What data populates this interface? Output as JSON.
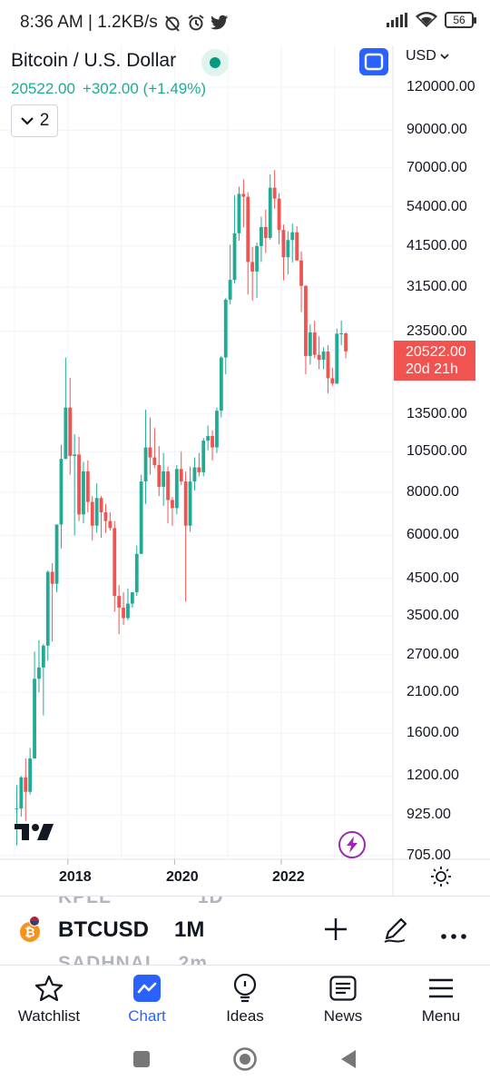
{
  "status_bar": {
    "time_speed": "8:36 AM | 1.2KB/s",
    "battery": "56"
  },
  "header": {
    "title": "Bitcoin / U.S. Dollar",
    "price": "20522.00",
    "change": "+302.00 (+1.49%)",
    "collapse_count": "2",
    "currency": "USD"
  },
  "price_axis": [
    "120000.00",
    "90000.00",
    "70000.00",
    "54000.00",
    "41500.00",
    "31500.00",
    "23500.00",
    "13500.00",
    "10500.00",
    "8000.00",
    "6000.00",
    "4500.00",
    "3500.00",
    "2700.00",
    "2100.00",
    "1600.00",
    "1200.00",
    "925.00",
    "705.00"
  ],
  "price_tag": {
    "price": "20522.00",
    "countdown": "20d 21h"
  },
  "time_axis": [
    "2018",
    "2020",
    "2022"
  ],
  "toolbar": {
    "ghost_above": "KPLL",
    "ghost_above_interval": "1D",
    "ticker": "BTCUSD",
    "interval": "1M",
    "ghost_below": "SADHNAI",
    "ghost_below_interval": "2m"
  },
  "nav": [
    {
      "label": "Watchlist",
      "icon": "star-icon"
    },
    {
      "label": "Chart",
      "icon": "chart-icon"
    },
    {
      "label": "Ideas",
      "icon": "lightbulb-icon"
    },
    {
      "label": "News",
      "icon": "news-icon"
    },
    {
      "label": "Menu",
      "icon": "menu-icon"
    }
  ],
  "colors": {
    "up": "#22ab94",
    "down": "#f05350",
    "accent": "#2962ff"
  },
  "chart_data": {
    "type": "candlestick",
    "scale": "log",
    "series": [
      {
        "t": "2017-01",
        "o": 965,
        "h": 1130,
        "l": 755,
        "c": 966
      },
      {
        "t": "2017-02",
        "o": 966,
        "h": 1200,
        "l": 915,
        "c": 1190
      },
      {
        "t": "2017-03",
        "o": 1190,
        "h": 1350,
        "l": 890,
        "c": 1080
      },
      {
        "t": "2017-04",
        "o": 1080,
        "h": 1450,
        "l": 1060,
        "c": 1350
      },
      {
        "t": "2017-05",
        "o": 1350,
        "h": 2760,
        "l": 1350,
        "c": 2300
      },
      {
        "t": "2017-06",
        "o": 2300,
        "h": 2980,
        "l": 2100,
        "c": 2480
      },
      {
        "t": "2017-07",
        "o": 2480,
        "h": 2900,
        "l": 1800,
        "c": 2870
      },
      {
        "t": "2017-08",
        "o": 2870,
        "h": 4750,
        "l": 2600,
        "c": 4700
      },
      {
        "t": "2017-09",
        "o": 4700,
        "h": 4980,
        "l": 2950,
        "c": 4340
      },
      {
        "t": "2017-10",
        "o": 4340,
        "h": 6450,
        "l": 4100,
        "c": 6450
      },
      {
        "t": "2017-11",
        "o": 6450,
        "h": 11000,
        "l": 5500,
        "c": 10000
      },
      {
        "t": "2017-12",
        "o": 10000,
        "h": 19700,
        "l": 10000,
        "c": 14100
      },
      {
        "t": "2018-01",
        "o": 14100,
        "h": 17200,
        "l": 9000,
        "c": 10200
      },
      {
        "t": "2018-02",
        "o": 10200,
        "h": 11800,
        "l": 6000,
        "c": 10300
      },
      {
        "t": "2018-03",
        "o": 10300,
        "h": 11600,
        "l": 6600,
        "c": 6900
      },
      {
        "t": "2018-04",
        "o": 6900,
        "h": 9800,
        "l": 6500,
        "c": 9200
      },
      {
        "t": "2018-05",
        "o": 9200,
        "h": 9900,
        "l": 7000,
        "c": 7500
      },
      {
        "t": "2018-06",
        "o": 7500,
        "h": 7800,
        "l": 5800,
        "c": 6400
      },
      {
        "t": "2018-07",
        "o": 6400,
        "h": 8500,
        "l": 6100,
        "c": 7700
      },
      {
        "t": "2018-08",
        "o": 7700,
        "h": 7800,
        "l": 5900,
        "c": 7000
      },
      {
        "t": "2018-09",
        "o": 7000,
        "h": 7400,
        "l": 6100,
        "c": 6600
      },
      {
        "t": "2018-10",
        "o": 6600,
        "h": 7000,
        "l": 6200,
        "c": 6300
      },
      {
        "t": "2018-11",
        "o": 6300,
        "h": 6600,
        "l": 3600,
        "c": 4000
      },
      {
        "t": "2018-12",
        "o": 4000,
        "h": 4300,
        "l": 3100,
        "c": 3700
      },
      {
        "t": "2019-01",
        "o": 3700,
        "h": 4100,
        "l": 3300,
        "c": 3450
      },
      {
        "t": "2019-02",
        "o": 3450,
        "h": 4200,
        "l": 3400,
        "c": 3800
      },
      {
        "t": "2019-03",
        "o": 3800,
        "h": 4100,
        "l": 3700,
        "c": 4100
      },
      {
        "t": "2019-04",
        "o": 4100,
        "h": 5600,
        "l": 4000,
        "c": 5300
      },
      {
        "t": "2019-05",
        "o": 5300,
        "h": 9000,
        "l": 5300,
        "c": 8600
      },
      {
        "t": "2019-06",
        "o": 8600,
        "h": 13900,
        "l": 7400,
        "c": 10800
      },
      {
        "t": "2019-07",
        "o": 10800,
        "h": 13200,
        "l": 9000,
        "c": 10100
      },
      {
        "t": "2019-08",
        "o": 10100,
        "h": 12300,
        "l": 9400,
        "c": 9600
      },
      {
        "t": "2019-09",
        "o": 9600,
        "h": 10900,
        "l": 7800,
        "c": 8300
      },
      {
        "t": "2019-10",
        "o": 8300,
        "h": 10400,
        "l": 7300,
        "c": 9200
      },
      {
        "t": "2019-11",
        "o": 9200,
        "h": 9500,
        "l": 6500,
        "c": 7600
      },
      {
        "t": "2019-12",
        "o": 7600,
        "h": 7750,
        "l": 6400,
        "c": 7200
      },
      {
        "t": "2020-01",
        "o": 7200,
        "h": 9600,
        "l": 6900,
        "c": 9350
      },
      {
        "t": "2020-02",
        "o": 9350,
        "h": 10500,
        "l": 8400,
        "c": 8600
      },
      {
        "t": "2020-03",
        "o": 8600,
        "h": 9200,
        "l": 3850,
        "c": 6400
      },
      {
        "t": "2020-04",
        "o": 6400,
        "h": 9500,
        "l": 6150,
        "c": 8600
      },
      {
        "t": "2020-05",
        "o": 8600,
        "h": 10100,
        "l": 8100,
        "c": 9450
      },
      {
        "t": "2020-06",
        "o": 9450,
        "h": 10400,
        "l": 8900,
        "c": 9150
      },
      {
        "t": "2020-07",
        "o": 9150,
        "h": 11500,
        "l": 8900,
        "c": 11300
      },
      {
        "t": "2020-08",
        "o": 11300,
        "h": 12500,
        "l": 10600,
        "c": 11650
      },
      {
        "t": "2020-09",
        "o": 11650,
        "h": 12100,
        "l": 9900,
        "c": 10800
      },
      {
        "t": "2020-10",
        "o": 10800,
        "h": 14100,
        "l": 10400,
        "c": 13800
      },
      {
        "t": "2020-11",
        "o": 13800,
        "h": 19900,
        "l": 13200,
        "c": 19700
      },
      {
        "t": "2020-12",
        "o": 19700,
        "h": 29300,
        "l": 17600,
        "c": 29000
      },
      {
        "t": "2021-01",
        "o": 29000,
        "h": 41900,
        "l": 28100,
        "c": 33100
      },
      {
        "t": "2021-02",
        "o": 33100,
        "h": 58300,
        "l": 32300,
        "c": 45200
      },
      {
        "t": "2021-03",
        "o": 45200,
        "h": 61700,
        "l": 43000,
        "c": 58800
      },
      {
        "t": "2021-04",
        "o": 58800,
        "h": 64800,
        "l": 47000,
        "c": 57700
      },
      {
        "t": "2021-05",
        "o": 57700,
        "h": 59500,
        "l": 30000,
        "c": 37300
      },
      {
        "t": "2021-06",
        "o": 37300,
        "h": 41300,
        "l": 28800,
        "c": 35000
      },
      {
        "t": "2021-07",
        "o": 35000,
        "h": 42500,
        "l": 29300,
        "c": 41500
      },
      {
        "t": "2021-08",
        "o": 41500,
        "h": 50500,
        "l": 37300,
        "c": 47100
      },
      {
        "t": "2021-09",
        "o": 47100,
        "h": 52900,
        "l": 39600,
        "c": 43800
      },
      {
        "t": "2021-10",
        "o": 43800,
        "h": 67000,
        "l": 43300,
        "c": 61300
      },
      {
        "t": "2021-11",
        "o": 61300,
        "h": 69000,
        "l": 53300,
        "c": 57000
      },
      {
        "t": "2021-12",
        "o": 57000,
        "h": 59100,
        "l": 42000,
        "c": 46200
      },
      {
        "t": "2022-01",
        "o": 46200,
        "h": 47900,
        "l": 33000,
        "c": 38500
      },
      {
        "t": "2022-02",
        "o": 38500,
        "h": 45800,
        "l": 34300,
        "c": 43200
      },
      {
        "t": "2022-03",
        "o": 43200,
        "h": 48200,
        "l": 37200,
        "c": 45500
      },
      {
        "t": "2022-04",
        "o": 45500,
        "h": 47400,
        "l": 37600,
        "c": 37700
      },
      {
        "t": "2022-05",
        "o": 37700,
        "h": 40000,
        "l": 26700,
        "c": 31800
      },
      {
        "t": "2022-06",
        "o": 31800,
        "h": 31900,
        "l": 17600,
        "c": 19900
      },
      {
        "t": "2022-07",
        "o": 19900,
        "h": 24600,
        "l": 18800,
        "c": 23300
      },
      {
        "t": "2022-08",
        "o": 23300,
        "h": 25200,
        "l": 19600,
        "c": 20050
      },
      {
        "t": "2022-09",
        "o": 20050,
        "h": 22700,
        "l": 18200,
        "c": 19400
      },
      {
        "t": "2022-10",
        "o": 19400,
        "h": 21100,
        "l": 18200,
        "c": 20500
      },
      {
        "t": "2022-11",
        "o": 20500,
        "h": 21400,
        "l": 15500,
        "c": 17150
      },
      {
        "t": "2022-12",
        "o": 17150,
        "h": 18400,
        "l": 16300,
        "c": 16550
      },
      {
        "t": "2023-01",
        "o": 16550,
        "h": 23900,
        "l": 16500,
        "c": 23100
      },
      {
        "t": "2023-02",
        "o": 23100,
        "h": 25200,
        "l": 21400,
        "c": 23150
      },
      {
        "t": "2023-03",
        "o": 23150,
        "h": 23300,
        "l": 19600,
        "c": 20522
      }
    ]
  }
}
